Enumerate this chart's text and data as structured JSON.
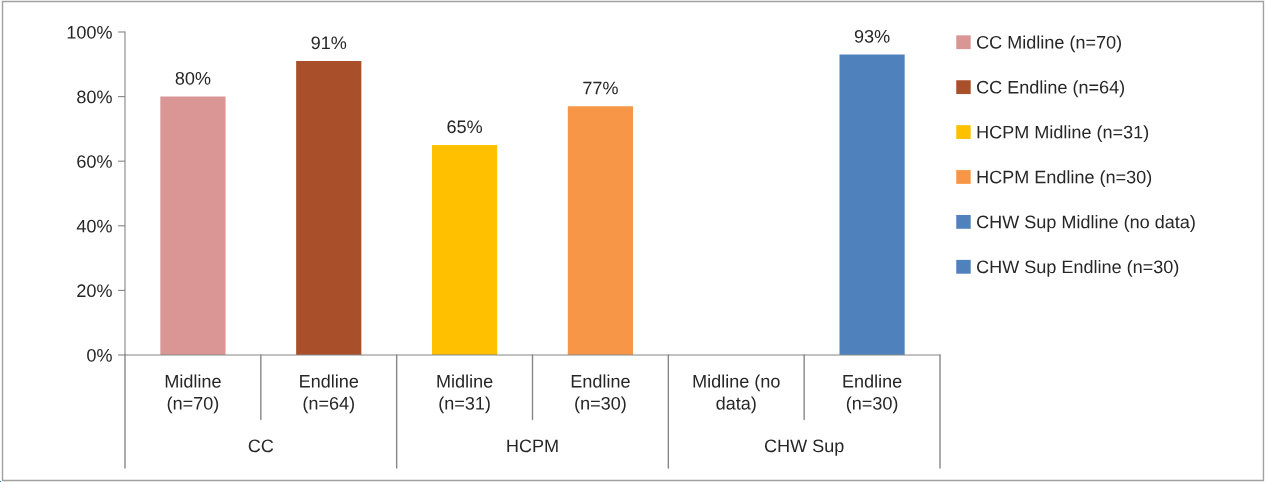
{
  "chart_data": {
    "type": "bar",
    "stacked": true,
    "categories": [
      "Midline\n(n=70)",
      "Endline\n(n=64)",
      "Midline\n(n=31)",
      "Endline\n(n=30)",
      "Midline (no\ndata)",
      "Endline\n(n=30)"
    ],
    "series": [
      {
        "name": "CC Midline (n=70)",
        "color": "#d99694",
        "values": [
          80,
          null,
          null,
          null,
          null,
          null
        ],
        "value_labels": [
          "80%",
          null,
          null,
          null,
          null,
          null
        ]
      },
      {
        "name": "CC Endline (n=64)",
        "color": "#a9502a",
        "values": [
          null,
          91,
          null,
          null,
          null,
          null
        ],
        "value_labels": [
          null,
          "91%",
          null,
          null,
          null,
          null
        ]
      },
      {
        "name": "HCPM Midline (n=31)",
        "color": "#ffc000",
        "values": [
          null,
          null,
          65,
          null,
          null,
          null
        ],
        "value_labels": [
          null,
          null,
          "65%",
          null,
          null,
          null
        ]
      },
      {
        "name": "HCPM Endline (n=30)",
        "color": "#f79646",
        "values": [
          null,
          null,
          null,
          77,
          null,
          null
        ],
        "value_labels": [
          null,
          null,
          null,
          "77%",
          null,
          null
        ]
      },
      {
        "name": "CHW Sup Midline (no data)",
        "color": "#4f81bd",
        "values": [
          null,
          null,
          null,
          null,
          null,
          null
        ]
      },
      {
        "name": "CHW Sup Endline (n=30)",
        "color": "#4f81bd",
        "values": [
          null,
          null,
          null,
          null,
          null,
          93
        ],
        "value_labels": [
          null,
          null,
          null,
          null,
          null,
          "93%"
        ]
      }
    ],
    "annotations": [
      "CC",
      "HCPM",
      "CHW Sup"
    ],
    "ylim": [
      0,
      100
    ],
    "yticks": [
      {
        "value": 0,
        "label": "0%"
      },
      {
        "value": 20,
        "label": "20%"
      },
      {
        "value": 40,
        "label": "40%"
      },
      {
        "value": 60,
        "label": "60%"
      },
      {
        "value": 80,
        "label": "80%"
      },
      {
        "value": 100,
        "label": "100%"
      }
    ],
    "legend": "right"
  }
}
